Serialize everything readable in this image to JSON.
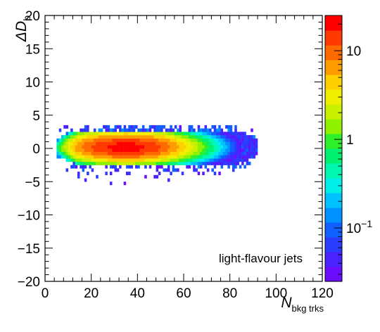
{
  "chart_data": {
    "type": "heatmap",
    "title": "",
    "annotation": "light-flavour jets",
    "xlabel": {
      "main": "N",
      "sub": "bkg trks"
    },
    "ylabel": {
      "main": "ΔD",
      "sub": "b"
    },
    "xlim": [
      0,
      120
    ],
    "ylim": [
      -20,
      20
    ],
    "x_ticks": [
      0,
      20,
      40,
      60,
      80,
      100,
      120
    ],
    "x_tick_labels": [
      "0",
      "20",
      "40",
      "60",
      "80",
      "100",
      "120"
    ],
    "y_ticks": [
      -20,
      -15,
      -10,
      -5,
      0,
      5,
      10,
      15,
      20
    ],
    "y_tick_labels": [
      "−20",
      "−15",
      "−10",
      "−5",
      "0",
      "5",
      "10",
      "15",
      "20"
    ],
    "grid": false,
    "colorbar": {
      "scale": "log",
      "range": [
        0.025,
        25
      ],
      "tick_labels": [
        {
          "value": 10,
          "text": "10"
        },
        {
          "value": 1,
          "text": "1"
        },
        {
          "value": 0.1,
          "base": "10",
          "exp": "−1"
        }
      ],
      "palette": [
        "#6a0dff",
        "#4a22ff",
        "#2a3dff",
        "#0f60ff",
        "#0090ff",
        "#00c2ff",
        "#00eee8",
        "#00f7b0",
        "#00f070",
        "#2ef02a",
        "#8ff000",
        "#c8f000",
        "#f0ef00",
        "#ffd000",
        "#ff9d00",
        "#ff6a00",
        "#ff3a00",
        "#ff0000"
      ]
    },
    "distribution": {
      "x_range": [
        5,
        92
      ],
      "y_center": 0.2,
      "peak_x": 35,
      "peak_value": 20,
      "core_y_halfwidth": 2.5,
      "sparse_y_min": -5.5,
      "sparse_y_max": 3.5
    }
  }
}
